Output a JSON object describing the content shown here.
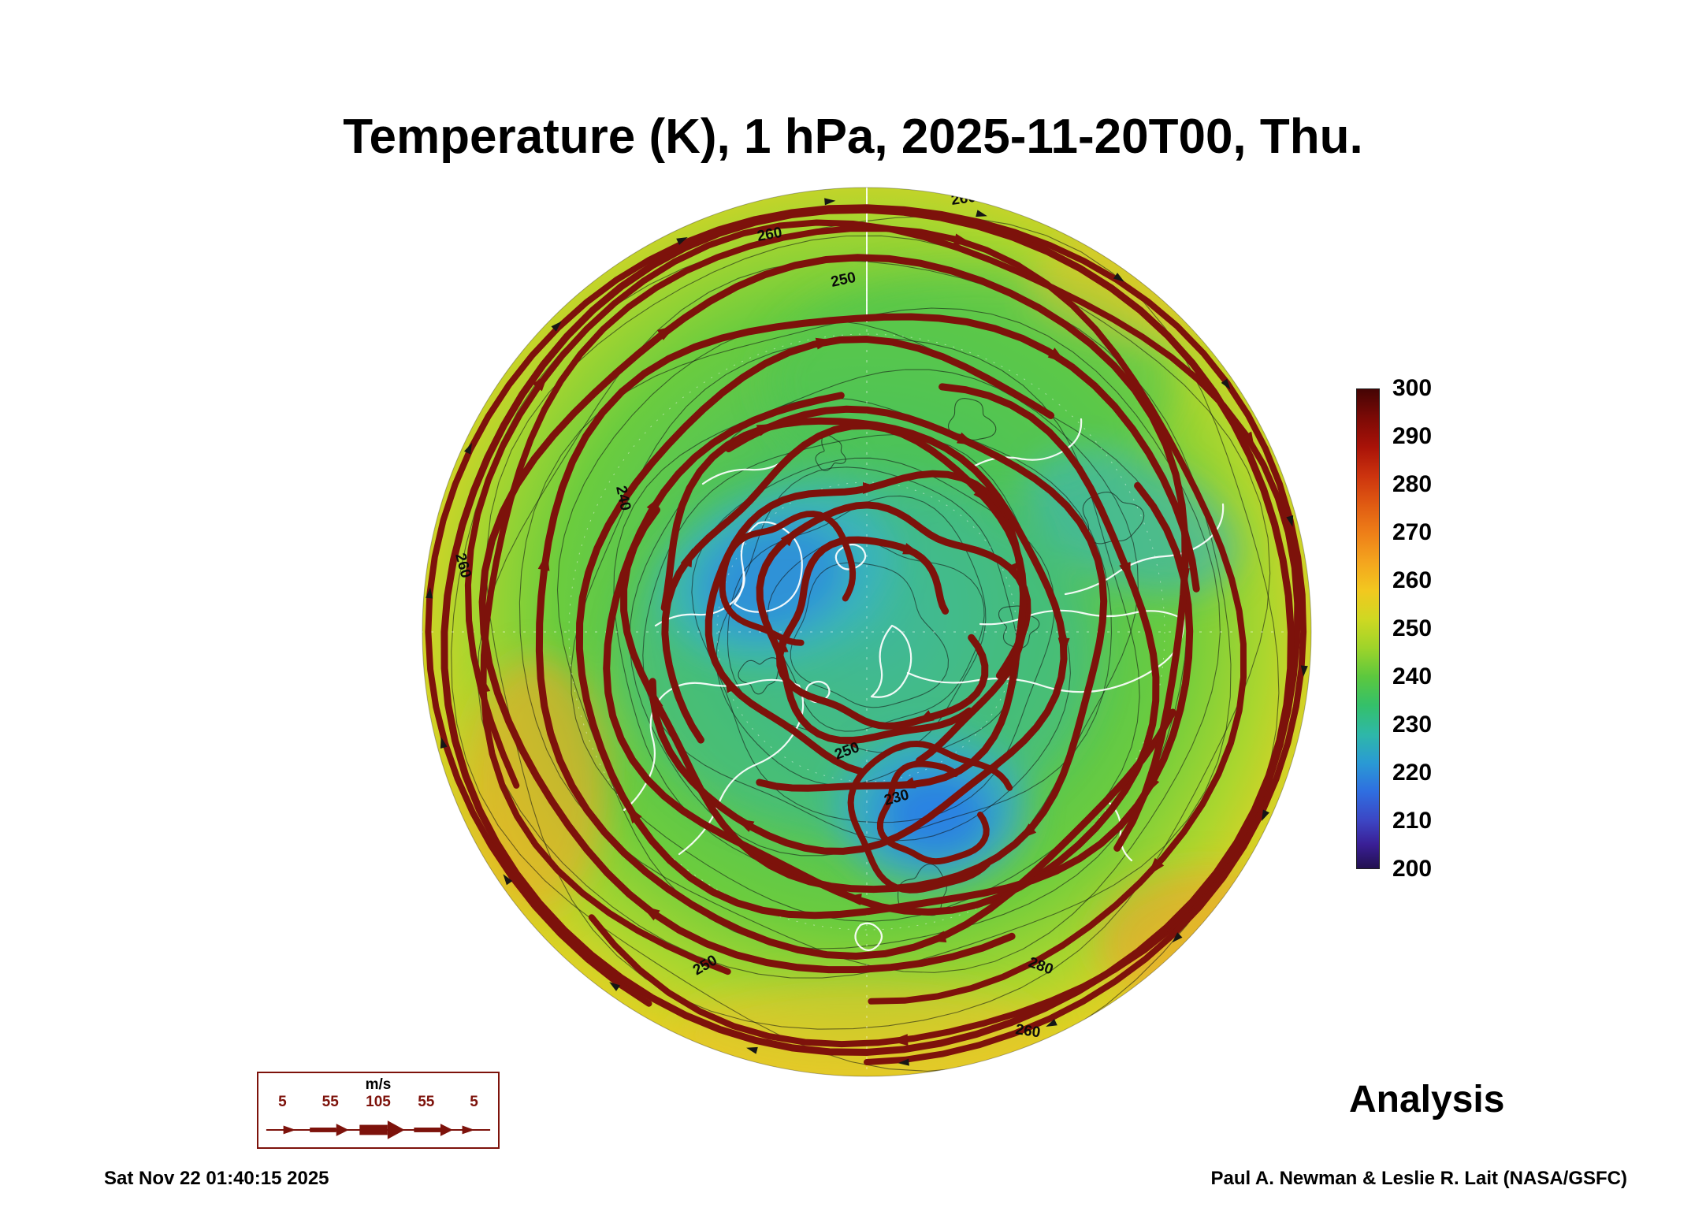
{
  "page": {
    "background": "#ffffff",
    "accent_maroon": "#7d120b"
  },
  "footer": {
    "timestamp": "Sat Nov 22 01:40:15 2025",
    "credit": "Paul A. Newman & Leslie R. Lait (NASA/GSFC)"
  },
  "chart_data": {
    "type": "heatmap",
    "title": "Temperature (K), 1 hPa, 2025-11-20T00, Thu.",
    "variable": "Temperature",
    "units": "K",
    "pressure_level": "1 hPa",
    "valid_time": "2025-11-20T00",
    "valid_day": "Thu.",
    "projection": "Northern Hemisphere polar stereographic",
    "annotation": "Analysis",
    "colorbar": {
      "min": 200,
      "max": 300,
      "ticks": [
        300,
        290,
        280,
        270,
        260,
        250,
        240,
        230,
        220,
        210,
        200
      ],
      "gradient": [
        [
          0,
          "#450404"
        ],
        [
          6,
          "#7c0a06"
        ],
        [
          12,
          "#a81208"
        ],
        [
          18,
          "#cc330e"
        ],
        [
          24,
          "#e05a12"
        ],
        [
          30,
          "#ee7f18"
        ],
        [
          36,
          "#f4a41e"
        ],
        [
          42,
          "#f2c81f"
        ],
        [
          48,
          "#cfd822"
        ],
        [
          54,
          "#9ed42a"
        ],
        [
          60,
          "#5cc83e"
        ],
        [
          66,
          "#34c06a"
        ],
        [
          72,
          "#2eb8a8"
        ],
        [
          78,
          "#2a9ad4"
        ],
        [
          84,
          "#2f6ee0"
        ],
        [
          90,
          "#3c46c4"
        ],
        [
          95,
          "#3a1f96"
        ],
        [
          100,
          "#221050"
        ]
      ]
    },
    "contour_labels": [
      "260",
      "260",
      "250",
      "240",
      "260",
      "230",
      "250",
      "280",
      "260",
      "250"
    ],
    "streamline_color": "#7d120b",
    "wind_legend": {
      "units": "m/s",
      "values": [
        "5",
        "55",
        "105",
        "55",
        "5"
      ]
    },
    "approx_field_description": {
      "pole_region": "cold pool near 220-235 K (blue/teal) offset around the pole",
      "midlatitudes": "240-255 K green ring",
      "outer_edge": "260-275 K yellow to orange near the map rim"
    }
  }
}
